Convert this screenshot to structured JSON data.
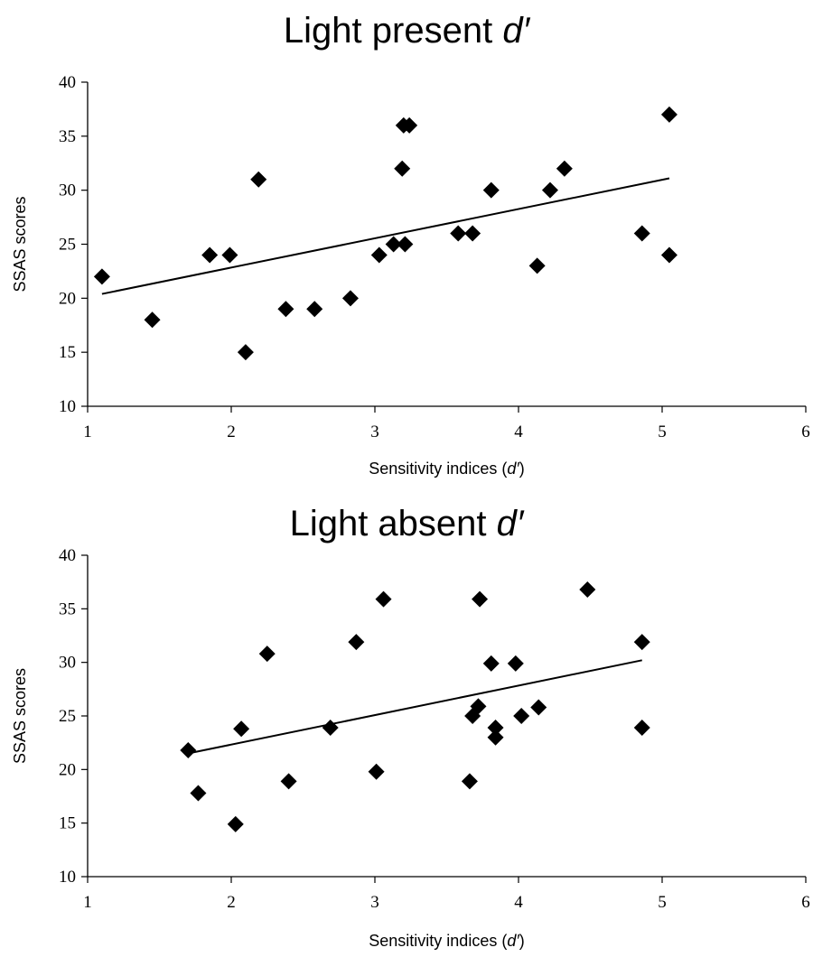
{
  "chart_data": [
    {
      "type": "scatter",
      "title": "Light present",
      "title_symbol": "d′",
      "xlabel": "Sensitivity indices (",
      "xlabel_symbol": "d′",
      "xlabel_suffix": ")",
      "ylabel": "SSAS scores",
      "xlim": [
        1,
        6
      ],
      "ylim": [
        10,
        40
      ],
      "x_ticks": [
        1,
        2,
        3,
        4,
        5,
        6
      ],
      "y_ticks": [
        10,
        15,
        20,
        25,
        30,
        35,
        40
      ],
      "grid": false,
      "legend": "none",
      "marker": "diamond",
      "marker_color": "#000000",
      "points": [
        {
          "x": 1.1,
          "y": 22
        },
        {
          "x": 1.45,
          "y": 18
        },
        {
          "x": 1.85,
          "y": 24
        },
        {
          "x": 1.99,
          "y": 24
        },
        {
          "x": 2.1,
          "y": 15
        },
        {
          "x": 2.19,
          "y": 31
        },
        {
          "x": 2.38,
          "y": 19
        },
        {
          "x": 2.58,
          "y": 19
        },
        {
          "x": 2.83,
          "y": 20
        },
        {
          "x": 3.03,
          "y": 24
        },
        {
          "x": 3.13,
          "y": 25
        },
        {
          "x": 3.19,
          "y": 32
        },
        {
          "x": 3.2,
          "y": 36
        },
        {
          "x": 3.21,
          "y": 25
        },
        {
          "x": 3.24,
          "y": 36
        },
        {
          "x": 3.58,
          "y": 26
        },
        {
          "x": 3.68,
          "y": 26
        },
        {
          "x": 3.81,
          "y": 30
        },
        {
          "x": 4.13,
          "y": 23
        },
        {
          "x": 4.22,
          "y": 30
        },
        {
          "x": 4.32,
          "y": 32
        },
        {
          "x": 4.86,
          "y": 26
        },
        {
          "x": 5.05,
          "y": 37
        },
        {
          "x": 5.05,
          "y": 24
        }
      ],
      "trendline": {
        "x": [
          1.1,
          5.05
        ],
        "y": [
          20.4,
          31.1
        ]
      }
    },
    {
      "type": "scatter",
      "title": "Light absent",
      "title_symbol": "d′",
      "xlabel": "Sensitivity indices (",
      "xlabel_symbol": "d′",
      "xlabel_suffix": ")",
      "ylabel": "SSAS scores",
      "xlim": [
        1,
        6
      ],
      "ylim": [
        10,
        40
      ],
      "x_ticks": [
        1,
        2,
        3,
        4,
        5,
        6
      ],
      "y_ticks": [
        10,
        15,
        20,
        25,
        30,
        35,
        40
      ],
      "grid": false,
      "legend": "none",
      "marker": "diamond",
      "marker_color": "#000000",
      "points": [
        {
          "x": 1.7,
          "y": 21.8
        },
        {
          "x": 1.77,
          "y": 17.8
        },
        {
          "x": 2.03,
          "y": 14.9
        },
        {
          "x": 2.07,
          "y": 23.8
        },
        {
          "x": 2.25,
          "y": 30.8
        },
        {
          "x": 2.4,
          "y": 18.9
        },
        {
          "x": 2.69,
          "y": 23.9
        },
        {
          "x": 2.87,
          "y": 31.9
        },
        {
          "x": 3.01,
          "y": 19.8
        },
        {
          "x": 3.06,
          "y": 35.9
        },
        {
          "x": 3.66,
          "y": 18.9
        },
        {
          "x": 3.68,
          "y": 25
        },
        {
          "x": 3.72,
          "y": 25.9
        },
        {
          "x": 3.73,
          "y": 35.9
        },
        {
          "x": 3.81,
          "y": 29.9
        },
        {
          "x": 3.84,
          "y": 23.9
        },
        {
          "x": 3.84,
          "y": 23
        },
        {
          "x": 3.98,
          "y": 29.9
        },
        {
          "x": 4.02,
          "y": 25
        },
        {
          "x": 4.14,
          "y": 25.8
        },
        {
          "x": 4.48,
          "y": 36.8
        },
        {
          "x": 4.86,
          "y": 31.9
        },
        {
          "x": 4.86,
          "y": 23.9
        }
      ],
      "trendline": {
        "x": [
          1.7,
          4.86
        ],
        "y": [
          21.5,
          30.2
        ]
      }
    }
  ]
}
